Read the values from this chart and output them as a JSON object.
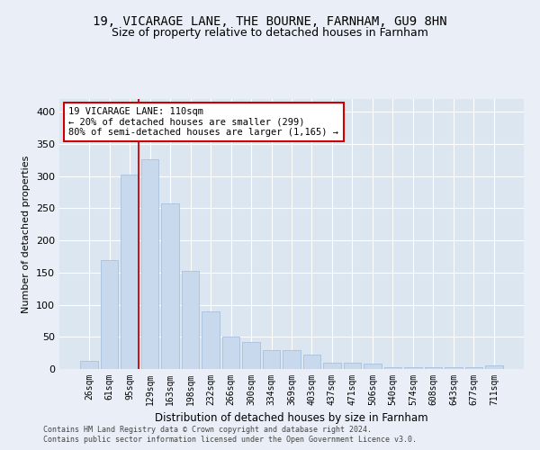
{
  "title1": "19, VICARAGE LANE, THE BOURNE, FARNHAM, GU9 8HN",
  "title2": "Size of property relative to detached houses in Farnham",
  "xlabel": "Distribution of detached houses by size in Farnham",
  "ylabel": "Number of detached properties",
  "bar_labels": [
    "26sqm",
    "61sqm",
    "95sqm",
    "129sqm",
    "163sqm",
    "198sqm",
    "232sqm",
    "266sqm",
    "300sqm",
    "334sqm",
    "369sqm",
    "403sqm",
    "437sqm",
    "471sqm",
    "506sqm",
    "540sqm",
    "574sqm",
    "608sqm",
    "643sqm",
    "677sqm",
    "711sqm"
  ],
  "bar_values": [
    12,
    170,
    302,
    326,
    258,
    152,
    90,
    50,
    42,
    30,
    30,
    22,
    10,
    10,
    8,
    3,
    3,
    3,
    3,
    3,
    5
  ],
  "bar_color": "#c8d9ee",
  "bar_edge_color": "#a8c0de",
  "annotation_title": "19 VICARAGE LANE: 110sqm",
  "annotation_line1": "← 20% of detached houses are smaller (299)",
  "annotation_line2": "80% of semi-detached houses are larger (1,165) →",
  "annotation_box_color": "#ffffff",
  "annotation_box_edge": "#cc0000",
  "footer1": "Contains HM Land Registry data © Crown copyright and database right 2024.",
  "footer2": "Contains public sector information licensed under the Open Government Licence v3.0.",
  "bg_color": "#eaeff7",
  "plot_bg_color": "#dce6f0",
  "grid_color": "#ffffff",
  "ylim": [
    0,
    420
  ],
  "title1_fontsize": 10,
  "title2_fontsize": 9,
  "tick_fontsize": 7,
  "ylabel_fontsize": 8,
  "xlabel_fontsize": 8.5,
  "annotation_fontsize": 7.5,
  "footer_fontsize": 6
}
